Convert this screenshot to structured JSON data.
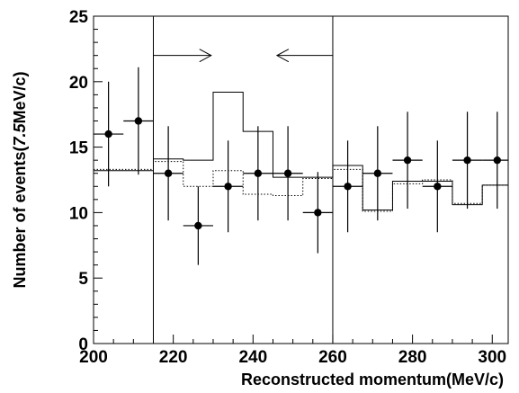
{
  "chart_data": {
    "type": "scatter",
    "title": "",
    "xlabel": "Reconstructed momentum(MeV/c)",
    "ylabel_prefix": "Number of events(",
    "ylabel_italic": "7.5",
    "ylabel_suffix": "MeV/c)",
    "xlim": [
      200,
      304
    ],
    "ylim": [
      0,
      25
    ],
    "x_ticks": [
      200,
      220,
      240,
      260,
      280,
      300
    ],
    "y_ticks": [
      0,
      5,
      10,
      15,
      20,
      25
    ],
    "signal_window": [
      215,
      260
    ],
    "bin_edges": [
      200,
      207.5,
      215,
      222.5,
      230,
      237.5,
      245,
      252.5,
      260,
      267.5,
      275,
      282.5,
      290,
      297.5,
      305
    ],
    "data_points": {
      "x": [
        203.75,
        211.25,
        218.75,
        226.25,
        233.75,
        241.25,
        248.75,
        256.25,
        263.75,
        271.25,
        278.75,
        286.25,
        293.75,
        301.25
      ],
      "y": [
        16,
        17,
        13,
        9,
        12,
        13,
        13,
        10,
        12,
        13,
        14,
        12,
        14,
        14
      ],
      "yerr_low": [
        4.0,
        4.1,
        3.6,
        3.0,
        3.5,
        3.6,
        3.6,
        3.1,
        3.5,
        3.6,
        3.7,
        3.5,
        3.7,
        3.7
      ],
      "yerr_high": [
        4.0,
        4.1,
        3.6,
        3.0,
        3.5,
        3.6,
        3.6,
        3.1,
        3.5,
        3.6,
        3.7,
        3.5,
        3.7,
        3.7
      ]
    },
    "series": [
      {
        "style": "solid",
        "values": [
          13.2,
          13.2,
          14.1,
          14.0,
          19.2,
          16.2,
          12.7,
          12.7,
          13.6,
          10.2,
          12.4,
          12.4,
          10.6,
          12.1
        ]
      },
      {
        "style": "dotted",
        "values": [
          13.3,
          13.3,
          13.9,
          12.0,
          13.2,
          11.4,
          11.3,
          12.6,
          13.3,
          10.1,
          12.2,
          12.5,
          10.7,
          12.1
        ]
      }
    ]
  }
}
